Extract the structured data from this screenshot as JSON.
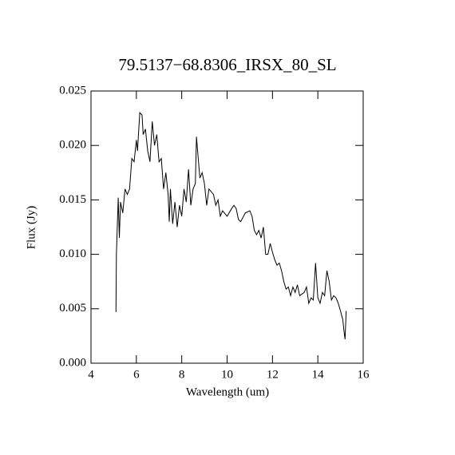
{
  "chart_data": {
    "type": "line",
    "title": "79.5137−68.8306_IRSX_80_SL",
    "xlabel": "Wavelength (um)",
    "ylabel": "Flux (Jy)",
    "xlim": [
      4,
      16
    ],
    "xticks": [
      4,
      6,
      8,
      10,
      12,
      14,
      16
    ],
    "ylim": [
      0,
      0.025
    ],
    "yticks": [
      {
        "value": 0,
        "label": "0.000"
      },
      0.005,
      {
        "value": 0.01,
        "label": "0.010"
      },
      0.015,
      {
        "value": 0.02,
        "label": "0.020"
      },
      0.025
    ],
    "color": "#000000",
    "x": [
      5.1,
      5.12,
      5.2,
      5.25,
      5.3,
      5.4,
      5.5,
      5.6,
      5.7,
      5.8,
      5.9,
      6.0,
      6.05,
      6.15,
      6.25,
      6.3,
      6.4,
      6.5,
      6.6,
      6.7,
      6.8,
      6.9,
      7.0,
      7.1,
      7.2,
      7.3,
      7.4,
      7.45,
      7.5,
      7.6,
      7.7,
      7.8,
      7.9,
      8.0,
      8.1,
      8.2,
      8.3,
      8.4,
      8.5,
      8.6,
      8.65,
      8.7,
      8.8,
      8.9,
      9.0,
      9.1,
      9.2,
      9.4,
      9.5,
      9.6,
      9.7,
      9.8,
      10.0,
      10.2,
      10.3,
      10.4,
      10.5,
      10.6,
      10.8,
      11.0,
      11.1,
      11.2,
      11.3,
      11.4,
      11.5,
      11.6,
      11.7,
      11.8,
      11.9,
      12.0,
      12.1,
      12.2,
      12.3,
      12.4,
      12.5,
      12.6,
      12.7,
      12.8,
      12.9,
      13.0,
      13.1,
      13.2,
      13.4,
      13.5,
      13.6,
      13.7,
      13.8,
      13.9,
      14.0,
      14.1,
      14.2,
      14.3,
      14.4,
      14.5,
      14.6,
      14.7,
      14.8,
      14.9,
      15.0,
      15.1,
      15.15,
      15.2,
      15.25
    ],
    "values": [
      0.0047,
      0.01,
      0.0152,
      0.0115,
      0.0148,
      0.0138,
      0.016,
      0.0155,
      0.016,
      0.0188,
      0.0185,
      0.0205,
      0.0195,
      0.023,
      0.0228,
      0.021,
      0.0215,
      0.0195,
      0.0185,
      0.0222,
      0.02,
      0.021,
      0.0185,
      0.0188,
      0.016,
      0.0175,
      0.0155,
      0.013,
      0.016,
      0.0128,
      0.0148,
      0.0125,
      0.0145,
      0.0135,
      0.016,
      0.0148,
      0.0178,
      0.0145,
      0.016,
      0.0165,
      0.0208,
      0.0195,
      0.017,
      0.0175,
      0.0165,
      0.0145,
      0.016,
      0.0155,
      0.0145,
      0.015,
      0.0135,
      0.014,
      0.0135,
      0.0142,
      0.0145,
      0.0142,
      0.0132,
      0.013,
      0.0138,
      0.014,
      0.0135,
      0.0122,
      0.0118,
      0.0122,
      0.0115,
      0.0125,
      0.01,
      0.01,
      0.011,
      0.0102,
      0.0095,
      0.009,
      0.0092,
      0.0085,
      0.0075,
      0.0068,
      0.007,
      0.0062,
      0.007,
      0.0065,
      0.0072,
      0.0062,
      0.0065,
      0.007,
      0.0055,
      0.006,
      0.0058,
      0.0092,
      0.006,
      0.0055,
      0.0065,
      0.0062,
      0.0085,
      0.0075,
      0.0058,
      0.0062,
      0.006,
      0.0055,
      0.0048,
      0.004,
      0.003,
      0.0022,
      0.0048
    ]
  }
}
